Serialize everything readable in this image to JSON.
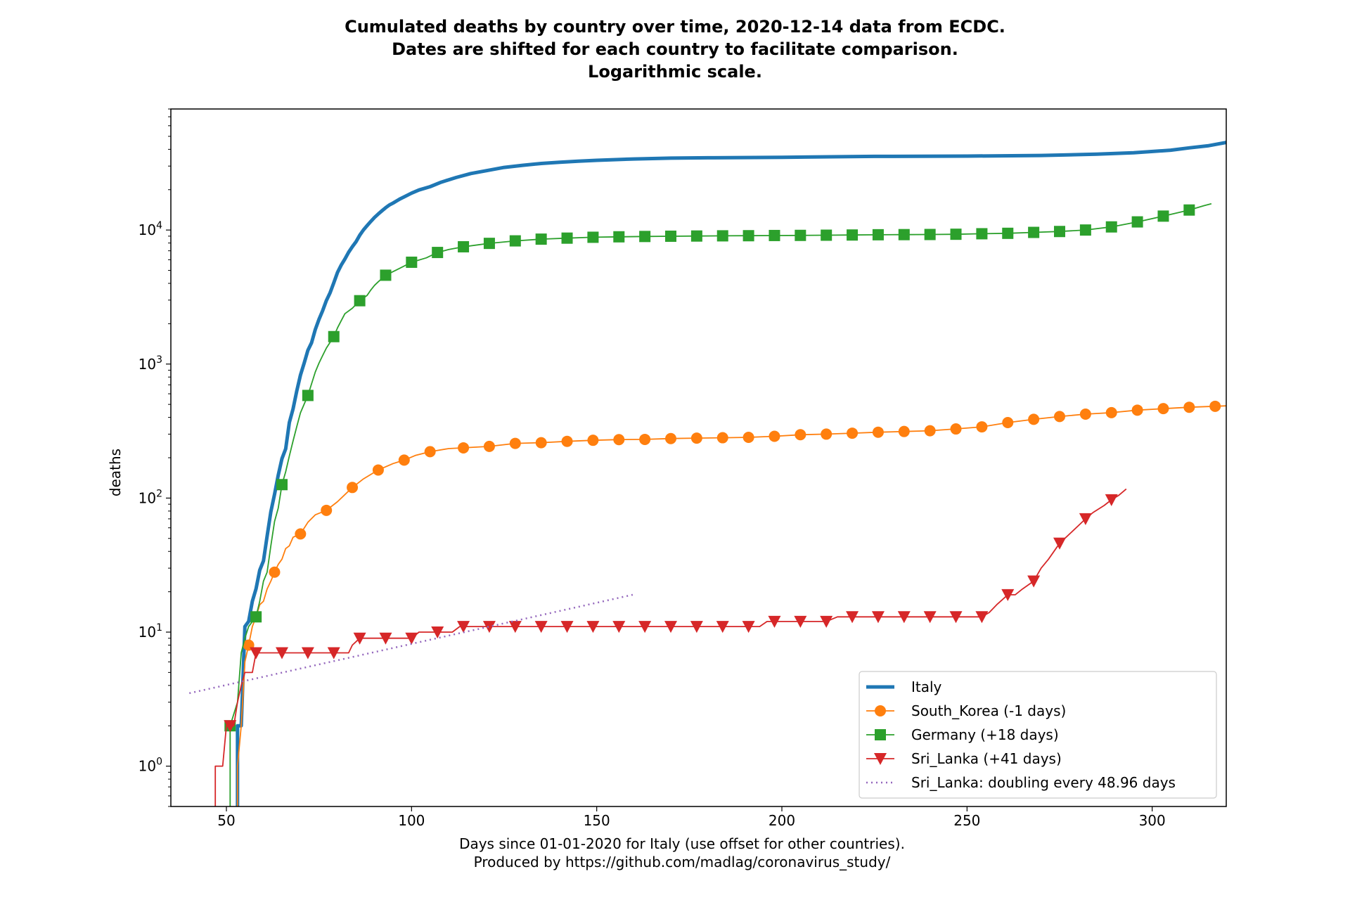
{
  "chart_data": {
    "type": "line",
    "title_lines": [
      "Cumulated deaths by country over time, 2020-12-14 data from ECDC.",
      "Dates are shifted for each country to facilitate comparison.",
      "Logarithmic scale."
    ],
    "xlabel_lines": [
      "Days since 01-01-2020 for Italy (use offset for other countries).",
      "Produced by https://github.com/madlag/coronavirus_study/"
    ],
    "ylabel": "deaths",
    "xlim": [
      35,
      320
    ],
    "ylim": [
      0.5,
      80000
    ],
    "y_scale": "log",
    "grid": false,
    "legend_position": "lower-right",
    "x_ticks": [
      50,
      100,
      150,
      200,
      250,
      300
    ],
    "y_ticks": [
      {
        "base": "10",
        "exp": "0",
        "value": 1
      },
      {
        "base": "10",
        "exp": "1",
        "value": 10
      },
      {
        "base": "10",
        "exp": "2",
        "value": 100
      },
      {
        "base": "10",
        "exp": "3",
        "value": 1000
      },
      {
        "base": "10",
        "exp": "4",
        "value": 10000
      }
    ],
    "series": [
      {
        "name": "Italy",
        "color": "#1f77b4",
        "marker": "none",
        "line_style": "solid-thick",
        "points": [
          [
            53,
            0.5
          ],
          [
            53,
            2
          ],
          [
            54,
            2
          ],
          [
            55,
            11
          ],
          [
            56,
            12
          ],
          [
            57,
            17
          ],
          [
            58,
            21
          ],
          [
            59,
            29
          ],
          [
            60,
            34
          ],
          [
            61,
            52
          ],
          [
            62,
            79
          ],
          [
            63,
            107
          ],
          [
            64,
            148
          ],
          [
            65,
            197
          ],
          [
            66,
            233
          ],
          [
            67,
            366
          ],
          [
            68,
            463
          ],
          [
            69,
            631
          ],
          [
            70,
            827
          ],
          [
            71,
            1016
          ],
          [
            72,
            1266
          ],
          [
            73,
            1441
          ],
          [
            74,
            1809
          ],
          [
            75,
            2158
          ],
          [
            76,
            2503
          ],
          [
            77,
            2978
          ],
          [
            78,
            3405
          ],
          [
            79,
            4032
          ],
          [
            80,
            4825
          ],
          [
            81,
            5476
          ],
          [
            82,
            6077
          ],
          [
            83,
            6820
          ],
          [
            84,
            7503
          ],
          [
            85,
            8165
          ],
          [
            86,
            9134
          ],
          [
            87,
            10023
          ],
          [
            88,
            10779
          ],
          [
            89,
            11591
          ],
          [
            90,
            12428
          ],
          [
            91,
            13155
          ],
          [
            92,
            13915
          ],
          [
            93,
            14681
          ],
          [
            94,
            15362
          ],
          [
            95,
            15887
          ],
          [
            96,
            16523
          ],
          [
            97,
            17127
          ],
          [
            98,
            17669
          ],
          [
            100,
            18849
          ],
          [
            102,
            19899
          ],
          [
            105,
            21067
          ],
          [
            108,
            22745
          ],
          [
            112,
            24648
          ],
          [
            116,
            26384
          ],
          [
            120,
            27682
          ],
          [
            125,
            29315
          ],
          [
            130,
            30395
          ],
          [
            135,
            31368
          ],
          [
            140,
            32007
          ],
          [
            145,
            32616
          ],
          [
            150,
            33142
          ],
          [
            160,
            33899
          ],
          [
            170,
            34405
          ],
          [
            180,
            34610
          ],
          [
            200,
            34869
          ],
          [
            225,
            35445
          ],
          [
            250,
            35610
          ],
          [
            270,
            36000
          ],
          [
            285,
            36800
          ],
          [
            295,
            37700
          ],
          [
            305,
            39400
          ],
          [
            310,
            41000
          ],
          [
            315,
            42500
          ],
          [
            320,
            45000
          ]
        ]
      },
      {
        "name": "South_Korea (-1 days)",
        "color": "#ff7f0e",
        "marker": "circle",
        "line_style": "solid",
        "points": [
          [
            53,
            0.5
          ],
          [
            53,
            1
          ],
          [
            54,
            2
          ],
          [
            55,
            6
          ],
          [
            56,
            8
          ],
          [
            57,
            11
          ],
          [
            58,
            13
          ],
          [
            59,
            16
          ],
          [
            60,
            17
          ],
          [
            61,
            21
          ],
          [
            62,
            24
          ],
          [
            63,
            28
          ],
          [
            64,
            32
          ],
          [
            65,
            35
          ],
          [
            66,
            42
          ],
          [
            67,
            44
          ],
          [
            68,
            51
          ],
          [
            70,
            54
          ],
          [
            72,
            66
          ],
          [
            74,
            75
          ],
          [
            77,
            81
          ],
          [
            80,
            94
          ],
          [
            84,
            120
          ],
          [
            87,
            139
          ],
          [
            91,
            162
          ],
          [
            95,
            181
          ],
          [
            98,
            192
          ],
          [
            101,
            208
          ],
          [
            105,
            222
          ],
          [
            110,
            234
          ],
          [
            114,
            237
          ],
          [
            121,
            243
          ],
          [
            128,
            256
          ],
          [
            135,
            259
          ],
          [
            142,
            265
          ],
          [
            149,
            270
          ],
          [
            156,
            273
          ],
          [
            163,
            274
          ],
          [
            170,
            278
          ],
          [
            177,
            280
          ],
          [
            184,
            282
          ],
          [
            191,
            284
          ],
          [
            198,
            289
          ],
          [
            205,
            297
          ],
          [
            212,
            300
          ],
          [
            219,
            305
          ],
          [
            226,
            310
          ],
          [
            233,
            314
          ],
          [
            240,
            318
          ],
          [
            247,
            328
          ],
          [
            254,
            340
          ],
          [
            261,
            366
          ],
          [
            268,
            387
          ],
          [
            275,
            406
          ],
          [
            282,
            423
          ],
          [
            289,
            434
          ],
          [
            296,
            453
          ],
          [
            303,
            465
          ],
          [
            310,
            476
          ],
          [
            317,
            484
          ],
          [
            320,
            488
          ]
        ]
      },
      {
        "name": "Germany (+18 days)",
        "color": "#2ca02c",
        "marker": "square",
        "line_style": "solid",
        "points": [
          [
            51,
            0.5
          ],
          [
            51,
            2
          ],
          [
            53,
            3
          ],
          [
            54,
            7
          ],
          [
            55,
            9
          ],
          [
            56,
            11
          ],
          [
            58,
            13
          ],
          [
            59,
            17
          ],
          [
            60,
            24
          ],
          [
            61,
            28
          ],
          [
            62,
            44
          ],
          [
            63,
            67
          ],
          [
            64,
            84
          ],
          [
            65,
            126
          ],
          [
            66,
            157
          ],
          [
            67,
            206
          ],
          [
            68,
            267
          ],
          [
            69,
            342
          ],
          [
            70,
            433
          ],
          [
            72,
            583
          ],
          [
            74,
            872
          ],
          [
            75,
            1017
          ],
          [
            76,
            1158
          ],
          [
            77,
            1317
          ],
          [
            79,
            1602
          ],
          [
            80,
            1861
          ],
          [
            81,
            2107
          ],
          [
            82,
            2373
          ],
          [
            84,
            2607
          ],
          [
            86,
            2969
          ],
          [
            88,
            3254
          ],
          [
            89,
            3569
          ],
          [
            90,
            3868
          ],
          [
            91,
            4110
          ],
          [
            93,
            4600
          ],
          [
            96,
            5050
          ],
          [
            100,
            5750
          ],
          [
            104,
            6200
          ],
          [
            107,
            6800
          ],
          [
            110,
            7150
          ],
          [
            114,
            7500
          ],
          [
            118,
            7750
          ],
          [
            121,
            7950
          ],
          [
            125,
            8150
          ],
          [
            128,
            8300
          ],
          [
            135,
            8550
          ],
          [
            142,
            8700
          ],
          [
            149,
            8830
          ],
          [
            156,
            8900
          ],
          [
            163,
            8950
          ],
          [
            170,
            8990
          ],
          [
            177,
            9020
          ],
          [
            184,
            9050
          ],
          [
            191,
            9070
          ],
          [
            198,
            9100
          ],
          [
            205,
            9120
          ],
          [
            212,
            9150
          ],
          [
            219,
            9180
          ],
          [
            226,
            9220
          ],
          [
            233,
            9240
          ],
          [
            240,
            9260
          ],
          [
            247,
            9300
          ],
          [
            254,
            9380
          ],
          [
            261,
            9450
          ],
          [
            268,
            9600
          ],
          [
            275,
            9750
          ],
          [
            282,
            10000
          ],
          [
            289,
            10550
          ],
          [
            296,
            11500
          ],
          [
            303,
            12700
          ],
          [
            310,
            14100
          ],
          [
            314,
            15200
          ],
          [
            316,
            15700
          ]
        ]
      },
      {
        "name": "Sri_Lanka (+41 days)",
        "color": "#d62728",
        "marker": "triangle-down",
        "line_style": "solid",
        "points": [
          [
            47,
            0.5
          ],
          [
            47,
            1
          ],
          [
            49,
            1
          ],
          [
            49,
            1
          ],
          [
            50,
            2
          ],
          [
            51,
            2
          ],
          [
            52,
            2
          ],
          [
            53,
            3
          ],
          [
            54,
            4
          ],
          [
            55,
            5
          ],
          [
            57,
            5
          ],
          [
            58,
            7
          ],
          [
            62,
            7
          ],
          [
            65,
            7
          ],
          [
            70,
            7
          ],
          [
            72,
            7
          ],
          [
            76,
            7
          ],
          [
            79,
            7
          ],
          [
            83,
            7
          ],
          [
            84,
            8
          ],
          [
            86,
            9
          ],
          [
            90,
            9
          ],
          [
            93,
            9
          ],
          [
            98,
            9
          ],
          [
            100,
            9
          ],
          [
            102,
            10
          ],
          [
            107,
            10
          ],
          [
            111,
            10
          ],
          [
            113,
            11
          ],
          [
            118,
            11
          ],
          [
            121,
            11
          ],
          [
            128,
            11
          ],
          [
            135,
            11
          ],
          [
            142,
            11
          ],
          [
            149,
            11
          ],
          [
            156,
            11
          ],
          [
            163,
            11
          ],
          [
            170,
            11
          ],
          [
            177,
            11
          ],
          [
            184,
            11
          ],
          [
            191,
            11
          ],
          [
            194,
            11
          ],
          [
            196,
            12
          ],
          [
            198,
            12
          ],
          [
            205,
            12
          ],
          [
            210,
            12
          ],
          [
            212,
            12
          ],
          [
            215,
            13
          ],
          [
            219,
            13
          ],
          [
            226,
            13
          ],
          [
            233,
            13
          ],
          [
            240,
            13
          ],
          [
            247,
            13
          ],
          [
            254,
            13
          ],
          [
            256,
            14
          ],
          [
            258,
            16
          ],
          [
            261,
            19
          ],
          [
            263,
            19
          ],
          [
            265,
            21
          ],
          [
            268,
            24
          ],
          [
            270,
            30
          ],
          [
            272,
            35
          ],
          [
            275,
            46
          ],
          [
            278,
            55
          ],
          [
            280,
            62
          ],
          [
            282,
            70
          ],
          [
            284,
            78
          ],
          [
            287,
            88
          ],
          [
            289,
            97
          ],
          [
            291,
            105
          ],
          [
            293,
            117
          ]
        ]
      },
      {
        "name": "Sri_Lanka: doubling every 48.96 days",
        "color": "#9467bd",
        "marker": "none",
        "line_style": "dotted",
        "points": [
          [
            40,
            3.5
          ],
          [
            159.7,
            19.0
          ]
        ]
      }
    ],
    "markers": {
      "South_Korea (-1 days)": [
        56,
        63,
        70,
        77,
        84,
        91,
        98,
        105,
        114,
        121,
        128,
        135,
        142,
        149,
        156,
        163,
        170,
        177,
        184,
        191,
        198,
        205,
        212,
        219,
        226,
        233,
        240,
        247,
        254,
        261,
        268,
        275,
        282,
        289,
        296,
        303,
        310,
        317
      ],
      "Germany (+18 days)": [
        51,
        58,
        65,
        72,
        79,
        86,
        93,
        100,
        107,
        114,
        121,
        128,
        135,
        142,
        149,
        156,
        163,
        170,
        177,
        184,
        191,
        198,
        205,
        212,
        219,
        226,
        233,
        240,
        247,
        254,
        261,
        268,
        275,
        282,
        289,
        296,
        303,
        310
      ],
      "Sri_Lanka (+41 days)": [
        51,
        58,
        65,
        72,
        79,
        86,
        93,
        100,
        107,
        114,
        121,
        128,
        135,
        142,
        149,
        156,
        163,
        170,
        177,
        184,
        191,
        198,
        205,
        212,
        219,
        226,
        233,
        240,
        247,
        254,
        261,
        268,
        275,
        282,
        289
      ]
    }
  }
}
